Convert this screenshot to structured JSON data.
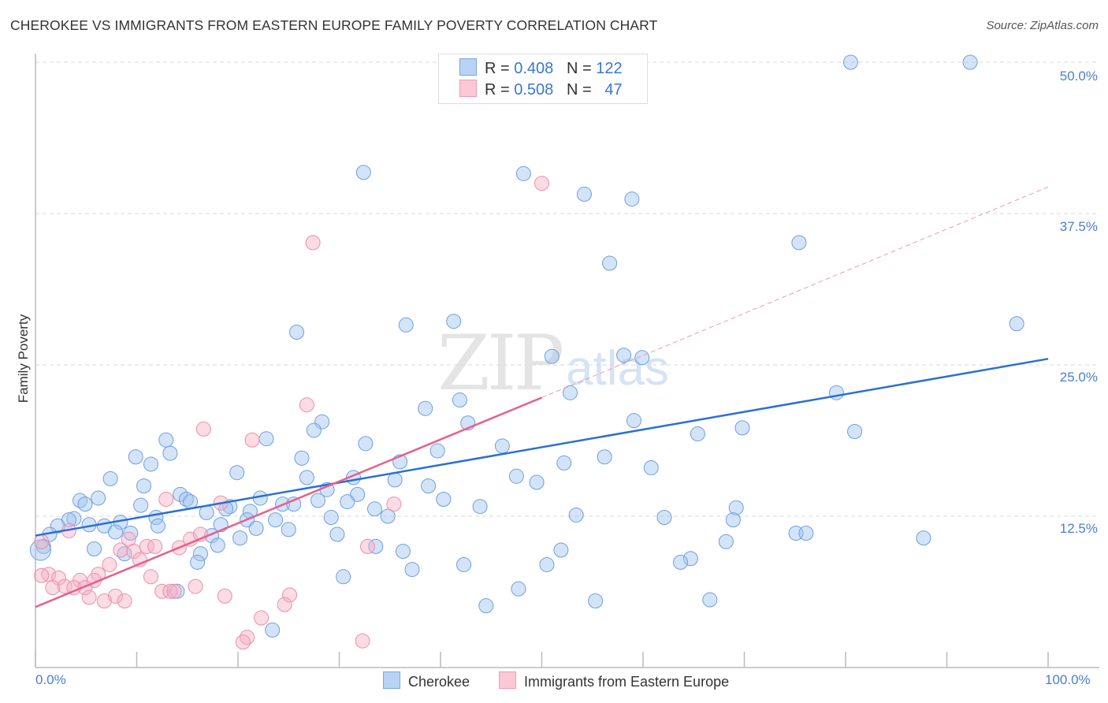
{
  "title": "CHEROKEE VS IMMIGRANTS FROM EASTERN EUROPE FAMILY POVERTY CORRELATION CHART",
  "source": "Source: ZipAtlas.com",
  "watermark": {
    "a": "ZIP",
    "b": "atlas"
  },
  "colors": {
    "blue": "#2b6fd6",
    "blue_fill": "#a9c8f0",
    "pink": "#e8608a",
    "pink_fill": "#f6b9cb"
  },
  "chart_data": {
    "type": "scatter",
    "title": "CHEROKEE VS IMMIGRANTS FROM EASTERN EUROPE FAMILY POVERTY CORRELATION CHART",
    "xlabel": "",
    "ylabel": "Family Poverty",
    "xlim": [
      0,
      100
    ],
    "ylim": [
      0,
      50
    ],
    "x_tick_labels": [
      "0.0%",
      "100.0%"
    ],
    "y_ticks": [
      12.5,
      25,
      37.5,
      50
    ],
    "y_tick_labels": [
      "12.5%",
      "25.0%",
      "37.5%",
      "50.0%"
    ],
    "grid": true,
    "legend": [
      {
        "name": "Cherokee",
        "r_label": "R = ",
        "r": "0.408",
        "n_label": "N = ",
        "n": "122"
      },
      {
        "name": "Immigrants from Eastern Europe",
        "r_label": "R = ",
        "r": "0.508",
        "n_label": "N = ",
        "n": "47"
      }
    ],
    "legend_placement": "top-center",
    "series": [
      {
        "name": "Cherokee",
        "trend": {
          "x": [
            0,
            100
          ],
          "y": [
            10.9,
            25.5
          ]
        },
        "points": [
          [
            80.5,
            50.0
          ],
          [
            92.3,
            50.0
          ],
          [
            32.4,
            40.9
          ],
          [
            48.2,
            40.8
          ],
          [
            54.2,
            39.1
          ],
          [
            58.9,
            38.7
          ],
          [
            75.4,
            35.1
          ],
          [
            56.7,
            33.4
          ],
          [
            96.9,
            28.4
          ],
          [
            25.8,
            27.7
          ],
          [
            36.6,
            28.3
          ],
          [
            41.3,
            28.6
          ],
          [
            51.0,
            25.7
          ],
          [
            58.1,
            25.8
          ],
          [
            59.9,
            25.6
          ],
          [
            79.1,
            22.7
          ],
          [
            52.8,
            22.7
          ],
          [
            41.9,
            22.1
          ],
          [
            38.5,
            21.4
          ],
          [
            42.7,
            20.2
          ],
          [
            59.1,
            20.4
          ],
          [
            69.8,
            19.8
          ],
          [
            80.9,
            19.5
          ],
          [
            65.4,
            19.3
          ],
          [
            28.3,
            20.3
          ],
          [
            27.5,
            19.6
          ],
          [
            22.8,
            18.9
          ],
          [
            32.6,
            18.5
          ],
          [
            12.9,
            18.8
          ],
          [
            46.1,
            18.3
          ],
          [
            39.7,
            17.9
          ],
          [
            13.3,
            17.7
          ],
          [
            9.9,
            17.4
          ],
          [
            56.2,
            17.4
          ],
          [
            26.3,
            17.3
          ],
          [
            36.0,
            17.0
          ],
          [
            52.2,
            16.9
          ],
          [
            11.4,
            16.8
          ],
          [
            60.8,
            16.5
          ],
          [
            19.9,
            16.1
          ],
          [
            7.4,
            15.6
          ],
          [
            26.8,
            15.7
          ],
          [
            31.4,
            15.7
          ],
          [
            47.5,
            15.8
          ],
          [
            35.5,
            15.5
          ],
          [
            49.5,
            15.3
          ],
          [
            10.7,
            15.0
          ],
          [
            38.8,
            15.0
          ],
          [
            28.8,
            14.7
          ],
          [
            14.3,
            14.3
          ],
          [
            6.2,
            14.0
          ],
          [
            4.4,
            13.8
          ],
          [
            22.2,
            14.0
          ],
          [
            31.8,
            14.3
          ],
          [
            14.9,
            13.9
          ],
          [
            15.3,
            13.7
          ],
          [
            27.9,
            13.8
          ],
          [
            40.3,
            13.9
          ],
          [
            4.9,
            13.5
          ],
          [
            10.4,
            13.4
          ],
          [
            24.4,
            13.5
          ],
          [
            25.5,
            13.5
          ],
          [
            30.8,
            13.7
          ],
          [
            19.2,
            13.3
          ],
          [
            18.8,
            13.1
          ],
          [
            43.9,
            13.3
          ],
          [
            69.2,
            13.2
          ],
          [
            33.5,
            13.1
          ],
          [
            21.2,
            12.9
          ],
          [
            16.9,
            12.8
          ],
          [
            34.8,
            12.5
          ],
          [
            53.4,
            12.6
          ],
          [
            3.8,
            12.3
          ],
          [
            8.4,
            12.0
          ],
          [
            3.3,
            12.2
          ],
          [
            2.2,
            11.7
          ],
          [
            11.9,
            12.4
          ],
          [
            23.7,
            12.2
          ],
          [
            29.2,
            12.4
          ],
          [
            62.1,
            12.4
          ],
          [
            68.9,
            12.2
          ],
          [
            20.9,
            12.2
          ],
          [
            5.3,
            11.8
          ],
          [
            6.8,
            11.7
          ],
          [
            12.1,
            11.7
          ],
          [
            18.3,
            11.8
          ],
          [
            21.8,
            11.5
          ],
          [
            25.0,
            11.4
          ],
          [
            7.9,
            11.2
          ],
          [
            9.4,
            11.1
          ],
          [
            1.4,
            11.0
          ],
          [
            75.1,
            11.1
          ],
          [
            76.1,
            11.1
          ],
          [
            87.7,
            10.7
          ],
          [
            29.8,
            11.0
          ],
          [
            17.4,
            10.9
          ],
          [
            20.2,
            10.7
          ],
          [
            68.2,
            10.4
          ],
          [
            18.0,
            10.1
          ],
          [
            0.8,
            10.0
          ],
          [
            5.8,
            9.8
          ],
          [
            33.6,
            10.0
          ],
          [
            36.3,
            9.6
          ],
          [
            51.9,
            9.7
          ],
          [
            8.8,
            9.4
          ],
          [
            16.3,
            9.4
          ],
          [
            64.7,
            9.0
          ],
          [
            63.7,
            8.7
          ],
          [
            16.0,
            8.7
          ],
          [
            42.3,
            8.5
          ],
          [
            50.5,
            8.5
          ],
          [
            37.2,
            8.1
          ],
          [
            30.4,
            7.5
          ],
          [
            47.7,
            6.5
          ],
          [
            14.0,
            6.3
          ],
          [
            55.3,
            5.5
          ],
          [
            66.6,
            5.6
          ],
          [
            44.5,
            5.1
          ],
          [
            23.4,
            3.1
          ],
          [
            0.5,
            9.7
          ]
        ]
      },
      {
        "name": "Immigrants from Eastern Europe",
        "trend": {
          "x": [
            0,
            50
          ],
          "y": [
            5.0,
            22.3
          ]
        },
        "trend_extension": {
          "x": [
            50,
            100
          ],
          "y": [
            22.3,
            39.7
          ]
        },
        "points": [
          [
            50.0,
            40.0
          ],
          [
            27.4,
            35.1
          ],
          [
            26.8,
            21.7
          ],
          [
            16.6,
            19.7
          ],
          [
            21.4,
            18.8
          ],
          [
            12.9,
            13.9
          ],
          [
            18.3,
            13.6
          ],
          [
            35.4,
            13.5
          ],
          [
            3.3,
            11.3
          ],
          [
            0.6,
            10.4
          ],
          [
            9.2,
            10.6
          ],
          [
            15.3,
            10.6
          ],
          [
            16.3,
            11.0
          ],
          [
            11.0,
            10.0
          ],
          [
            11.8,
            10.0
          ],
          [
            14.2,
            9.9
          ],
          [
            8.4,
            9.7
          ],
          [
            9.7,
            9.6
          ],
          [
            32.8,
            10.0
          ],
          [
            10.3,
            8.9
          ],
          [
            7.3,
            8.5
          ],
          [
            1.3,
            7.7
          ],
          [
            2.3,
            7.4
          ],
          [
            0.6,
            7.6
          ],
          [
            6.2,
            7.7
          ],
          [
            11.4,
            7.5
          ],
          [
            4.4,
            7.2
          ],
          [
            5.8,
            7.2
          ],
          [
            1.7,
            6.6
          ],
          [
            2.9,
            6.7
          ],
          [
            3.8,
            6.6
          ],
          [
            4.9,
            6.6
          ],
          [
            15.8,
            6.7
          ],
          [
            12.5,
            6.3
          ],
          [
            13.3,
            6.3
          ],
          [
            13.7,
            6.3
          ],
          [
            7.9,
            5.9
          ],
          [
            5.3,
            5.8
          ],
          [
            18.7,
            5.9
          ],
          [
            25.1,
            6.0
          ],
          [
            6.8,
            5.5
          ],
          [
            8.8,
            5.5
          ],
          [
            24.6,
            5.2
          ],
          [
            22.3,
            4.1
          ],
          [
            20.9,
            2.5
          ],
          [
            20.5,
            2.1
          ],
          [
            32.3,
            2.2
          ]
        ]
      }
    ]
  }
}
